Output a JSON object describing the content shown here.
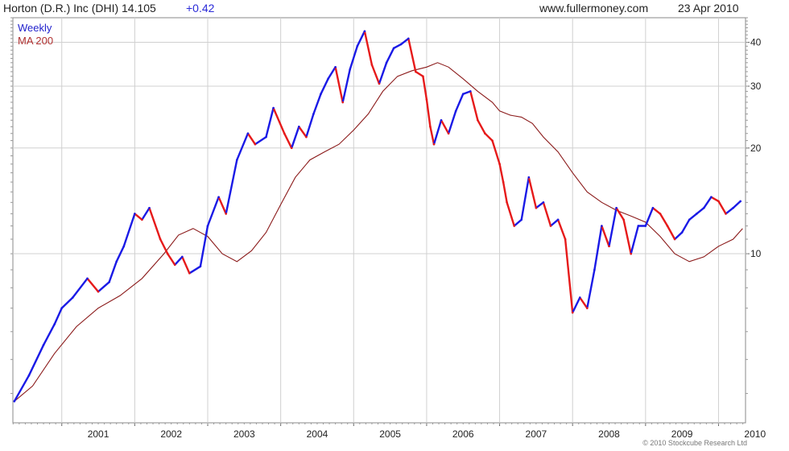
{
  "header": {
    "title": "Horton (D.R.) Inc (DHI) 14.105",
    "change": "+0.42",
    "site": "www.fullermoney.com",
    "date": "23 Apr 2010"
  },
  "legend": {
    "weekly": "Weekly",
    "ma": "MA 200"
  },
  "copyright": "© 2010 Stockcube Research Ltd",
  "colors": {
    "up": "#1a1ae6",
    "down": "#e61a1a",
    "ma": "#8b1a1a",
    "grid": "#d0d0d0"
  },
  "chart_data": {
    "type": "line",
    "y_scale": "log",
    "ylim": [
      3.3,
      47
    ],
    "yticks": [
      10,
      20,
      30,
      40
    ],
    "x_tick_labels": [
      "2001",
      "2002",
      "2003",
      "2004",
      "2005",
      "2006",
      "2007",
      "2008",
      "2009",
      "2010"
    ],
    "xlim": [
      2000.33,
      2010.37
    ],
    "series": [
      {
        "name": "Weekly",
        "x": [
          2000.35,
          2000.55,
          2000.75,
          2000.9,
          2001.0,
          2001.15,
          2001.35,
          2001.5,
          2001.65,
          2001.75,
          2001.85,
          2002.0,
          2002.1,
          2002.2,
          2002.35,
          2002.45,
          2002.55,
          2002.65,
          2002.75,
          2002.9,
          2003.0,
          2003.15,
          2003.25,
          2003.4,
          2003.55,
          2003.65,
          2003.8,
          2003.9,
          2004.05,
          2004.15,
          2004.25,
          2004.35,
          2004.45,
          2004.55,
          2004.65,
          2004.75,
          2004.85,
          2004.95,
          2005.05,
          2005.15,
          2005.25,
          2005.35,
          2005.45,
          2005.55,
          2005.65,
          2005.75,
          2005.85,
          2005.95,
          2006.0,
          2006.05,
          2006.1,
          2006.2,
          2006.3,
          2006.4,
          2006.5,
          2006.6,
          2006.7,
          2006.8,
          2006.9,
          2007.0,
          2007.05,
          2007.1,
          2007.2,
          2007.3,
          2007.4,
          2007.5,
          2007.6,
          2007.7,
          2007.8,
          2007.9,
          2008.0,
          2008.1,
          2008.2,
          2008.3,
          2008.4,
          2008.5,
          2008.6,
          2008.7,
          2008.8,
          2008.9,
          2009.0,
          2009.1,
          2009.2,
          2009.3,
          2009.4,
          2009.5,
          2009.6,
          2009.7,
          2009.8,
          2009.9,
          2010.0,
          2010.1,
          2010.2,
          2010.3
        ],
        "values": [
          3.8,
          4.5,
          5.5,
          6.3,
          7.0,
          7.5,
          8.5,
          7.8,
          8.3,
          9.5,
          10.5,
          13.0,
          12.5,
          13.5,
          11.0,
          10.0,
          9.3,
          9.8,
          8.8,
          9.2,
          12.0,
          14.5,
          13.0,
          18.5,
          22.0,
          20.5,
          21.5,
          26.0,
          22.0,
          20.0,
          23.0,
          21.5,
          25.0,
          28.5,
          31.5,
          34.0,
          27.0,
          33.5,
          39.0,
          43.0,
          34.5,
          30.5,
          35.0,
          38.5,
          39.5,
          41.0,
          33.0,
          32.0,
          27.5,
          23.0,
          20.5,
          24.0,
          22.0,
          25.5,
          28.5,
          29.0,
          24.0,
          22.0,
          21.0,
          18.0,
          16.0,
          14.0,
          12.0,
          12.5,
          16.5,
          13.5,
          14.0,
          12.0,
          12.5,
          11.0,
          6.8,
          7.5,
          7.0,
          9.0,
          12.0,
          10.5,
          13.5,
          12.5,
          10.0,
          12.0,
          12.0,
          13.5,
          13.0,
          12.0,
          11.0,
          11.5,
          12.5,
          13.0,
          13.5,
          14.5,
          14.105,
          13.0,
          13.5,
          14.105
        ]
      },
      {
        "name": "MA 200",
        "x": [
          2000.35,
          2000.6,
          2000.9,
          2001.2,
          2001.5,
          2001.8,
          2002.1,
          2002.4,
          2002.6,
          2002.8,
          2003.0,
          2003.2,
          2003.4,
          2003.6,
          2003.8,
          2004.0,
          2004.2,
          2004.4,
          2004.6,
          2004.8,
          2005.0,
          2005.2,
          2005.4,
          2005.6,
          2005.8,
          2006.0,
          2006.15,
          2006.3,
          2006.5,
          2006.7,
          2006.9,
          2007.0,
          2007.15,
          2007.3,
          2007.45,
          2007.6,
          2007.8,
          2008.0,
          2008.2,
          2008.4,
          2008.6,
          2008.8,
          2009.0,
          2009.2,
          2009.4,
          2009.6,
          2009.8,
          2010.0,
          2010.2,
          2010.33
        ],
        "values": [
          3.8,
          4.2,
          5.2,
          6.2,
          7.0,
          7.6,
          8.5,
          10.0,
          11.3,
          11.8,
          11.2,
          10.0,
          9.5,
          10.2,
          11.5,
          13.8,
          16.5,
          18.5,
          19.5,
          20.5,
          22.5,
          25.0,
          29.0,
          32.0,
          33.2,
          34.0,
          35.0,
          34.0,
          31.5,
          29.0,
          27.0,
          25.5,
          24.8,
          24.5,
          23.5,
          21.5,
          19.5,
          17.0,
          15.0,
          14.0,
          13.3,
          12.8,
          12.3,
          11.2,
          10.0,
          9.5,
          9.8,
          10.5,
          11.0,
          11.8
        ]
      }
    ]
  }
}
